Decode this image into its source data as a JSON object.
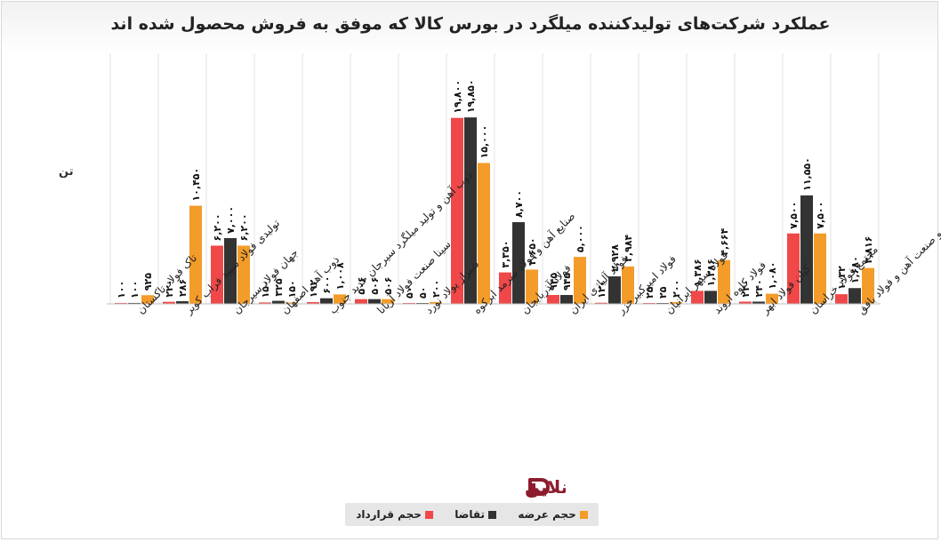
{
  "chart_data": {
    "type": "bar",
    "title": "عملکرد شرکت‌های تولیدکننده میلگرد در بورس کالا که موفق به فروش محصول شده اند",
    "ylabel": "تن",
    "ylim": [
      0,
      21000
    ],
    "grid": "vertical category dividers",
    "legend_position": "bottom",
    "categories": [
      "تاک فولاد تاکستان",
      "تولیدی فولاد سپید فراب کویر",
      "جهان فولاد سیرجان",
      "ذوب آهن اصفهان",
      "ذوب آهن و تولید میلگرد سیرجان حدید جنوب",
      "سینا صنعت فولاد آریانا",
      "شیراز پولاد نورد",
      "صنایع آهن و فولاد سرمد ابرکوه",
      "فولاد آذربایجان",
      "فولاد آلیاژی ایران",
      "فولاد امیرکبیرخزر",
      "فولاد سپهر ایرانیان",
      "فولاد کاوه اروند",
      "کیان فولاد ابهر",
      "مجتمع فولاد خراسان",
      "مجتمع معدنی و صنعت آهن و فولاد بافق"
    ],
    "series": [
      {
        "name": "حجم قرارداد",
        "color": "#f04848",
        "values": [
          100,
          220,
          6200,
          150,
          192,
          506,
          50,
          19800,
          3350,
          945,
          120,
          25,
          1386,
          240,
          7500,
          1032
        ],
        "labels": [
          "۱۰۰",
          "۲۲۰",
          "۶,۲۰۰",
          "۱۵۰",
          "۱۹۲",
          "۵۰۶",
          "۵۰",
          "۱۹,۸۰۰",
          "۳,۳۵۰",
          "۹۴۵",
          "۱۲۰",
          "۲۵",
          "۱,۳۸۶",
          "۲۴۰",
          "۷,۵۰۰",
          "۱۰۳۲"
        ]
      },
      {
        "name": "تقاضا",
        "color": "#333333",
        "values": [
          100,
          286,
          7000,
          325,
          600,
          506,
          50,
          19850,
          8700,
          945,
          2928,
          25,
          1386,
          240,
          11550,
          1680
        ],
        "labels": [
          "۱۰۰",
          "۲۸۶",
          "۷,۰۰۰",
          "۳۲۵",
          "۶۰۰",
          "۵۰۶",
          "۵۰",
          "۱۹,۸۵۰",
          "۸,۷۰۰",
          "۹۴۵",
          "۲,۹۲۸",
          "۲۵",
          "۱,۳۸۶",
          "۲۴۰",
          "۱۱,۵۵۰",
          "۱,۶۸۰"
        ]
      },
      {
        "name": "حجم عرضه",
        "color": "#f39c2a",
        "values": [
          925,
          10450,
          6200,
          150,
          1008,
          506,
          200,
          15000,
          3650,
          5000,
          3984,
          200,
          4664,
          1080,
          7500,
          3816
        ],
        "labels": [
          "۹۲۵",
          "۱۰,۴۵۰",
          "۶,۲۰۰",
          "۱۵۰",
          "۱,۰۰۸",
          "۵۰۶",
          "۲۰۰",
          "۱۵,۰۰۰",
          "۳,۶۵۰",
          "۵,۰۰۰",
          "۳,۹۸۴",
          "۲۰۰",
          "۴,۶۶۴",
          "۱,۰۸۰",
          "۷,۵۰۰",
          "۳,۸۱۶"
        ]
      }
    ]
  },
  "legend": [
    {
      "label": "حجم قرارداد",
      "color": "#f04848"
    },
    {
      "label": "تقاضا",
      "color": "#333333"
    },
    {
      "label": "حجم عرضه",
      "color": "#f39c2a"
    }
  ],
  "logo": {
    "text": "آهن آنلاین",
    "color": "#8c1d2e"
  }
}
